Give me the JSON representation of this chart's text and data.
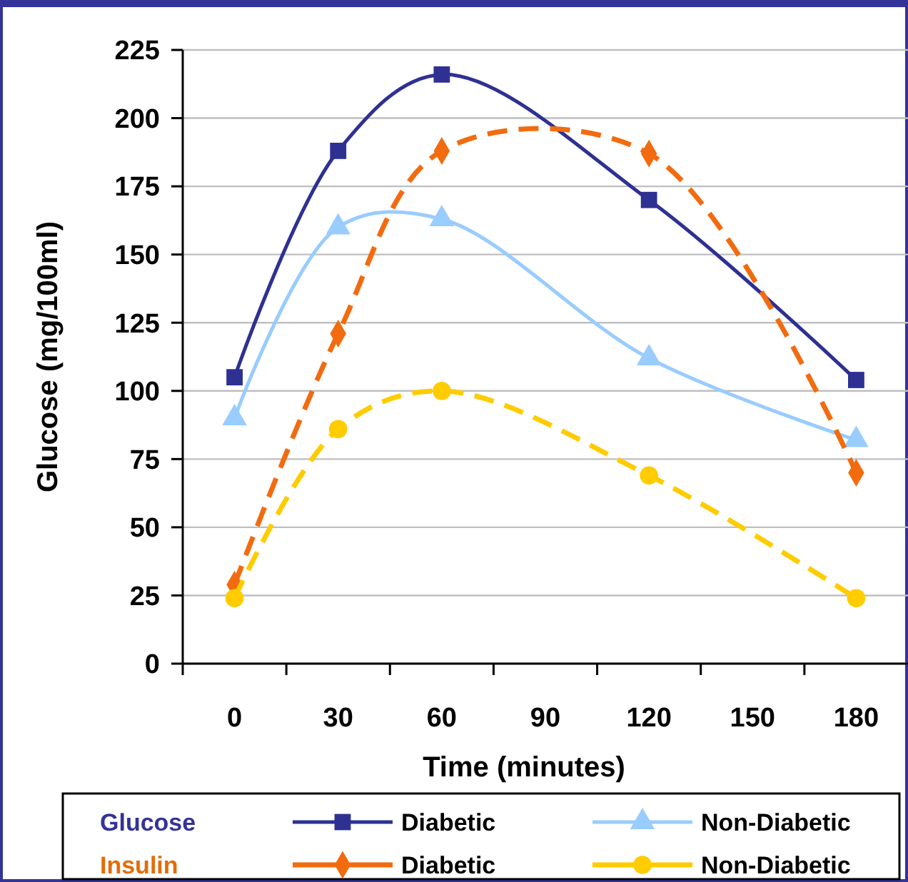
{
  "chart_data": {
    "type": "line",
    "xlabel": "Time (minutes)",
    "ylabel": "Glucose (mg/100ml)",
    "x": [
      0,
      30,
      60,
      120,
      180
    ],
    "xlim": [
      -15,
      195
    ],
    "xticks": [
      0,
      30,
      60,
      90,
      120,
      150,
      180,
      {
        "value": -15,
        "label": null
      },
      {
        "value": 15,
        "label": null
      },
      {
        "value": 45,
        "label": null
      },
      {
        "value": 75,
        "label": null
      },
      {
        "value": 105,
        "label": null
      },
      {
        "value": 135,
        "label": null
      },
      {
        "value": 165,
        "label": null
      }
    ],
    "ylim": [
      0,
      225
    ],
    "yticks": [
      0,
      25,
      50,
      75,
      100,
      125,
      150,
      175,
      200,
      225
    ],
    "grid": "y",
    "legend": "bottom",
    "annotations": [
      "Glucose",
      "Insulin"
    ],
    "series": [
      {
        "name": "Diabetic",
        "color": "#2e3192",
        "values": [
          105,
          188,
          216,
          170,
          104
        ],
        "marker": "square",
        "line_style": "solid"
      },
      {
        "name": "Non-Diabetic",
        "color": "#99ccff",
        "values": [
          90,
          160,
          163,
          112,
          82
        ],
        "marker": "triangle",
        "line_style": "solid"
      },
      {
        "name": "Diabetic",
        "color": "#f26b0f",
        "values": [
          29,
          121,
          188,
          187,
          70
        ],
        "marker": "diamond",
        "line_style": "dashed"
      },
      {
        "name": "Non-Diabetic",
        "color": "#ffcc00",
        "values": [
          24,
          86,
          100,
          69,
          24
        ],
        "marker": "circle",
        "line_style": "dashed"
      }
    ]
  }
}
